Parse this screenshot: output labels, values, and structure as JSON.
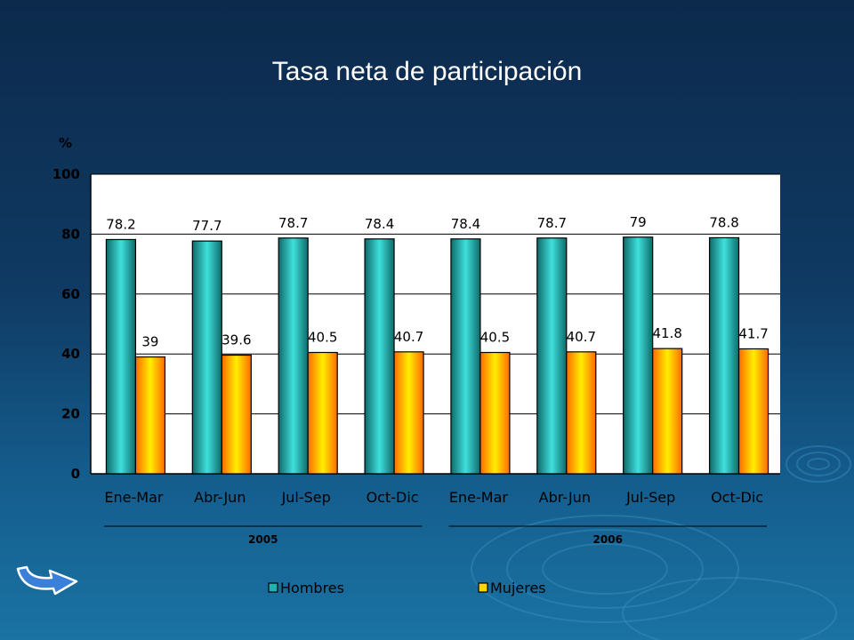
{
  "slide": {
    "title": "Tasa neta de participación"
  },
  "icons": {
    "nav": "curved-return-arrow-icon",
    "decoration": "water-ripple-icon"
  },
  "colors": {
    "hombres": "#20b2b2",
    "mujeres": "#ff9a00",
    "background_top": "#0c2a4c",
    "background_bottom": "#1a73a3"
  },
  "chart_data": {
    "type": "bar",
    "title": "",
    "ylabel": "%",
    "xlabel": "",
    "ylim": [
      0,
      100
    ],
    "yticks": [
      0,
      20,
      40,
      60,
      80,
      100
    ],
    "grid": true,
    "legend_position": "bottom",
    "categories": [
      "Ene-Mar",
      "Abr-Jun",
      "Jul-Sep",
      "Oct-Dic",
      "Ene-Mar",
      "Abr-Jun",
      "Jul-Sep",
      "Oct-Dic"
    ],
    "groups": [
      {
        "label": "2005",
        "span": [
          0,
          3
        ]
      },
      {
        "label": "2006",
        "span": [
          4,
          7
        ]
      }
    ],
    "series": [
      {
        "name": "Hombres",
        "values": [
          78.2,
          77.7,
          78.7,
          78.4,
          78.4,
          78.7,
          79,
          78.8
        ]
      },
      {
        "name": "Mujeres",
        "values": [
          39,
          39.6,
          40.5,
          40.7,
          40.5,
          40.7,
          41.8,
          41.7
        ]
      }
    ]
  }
}
